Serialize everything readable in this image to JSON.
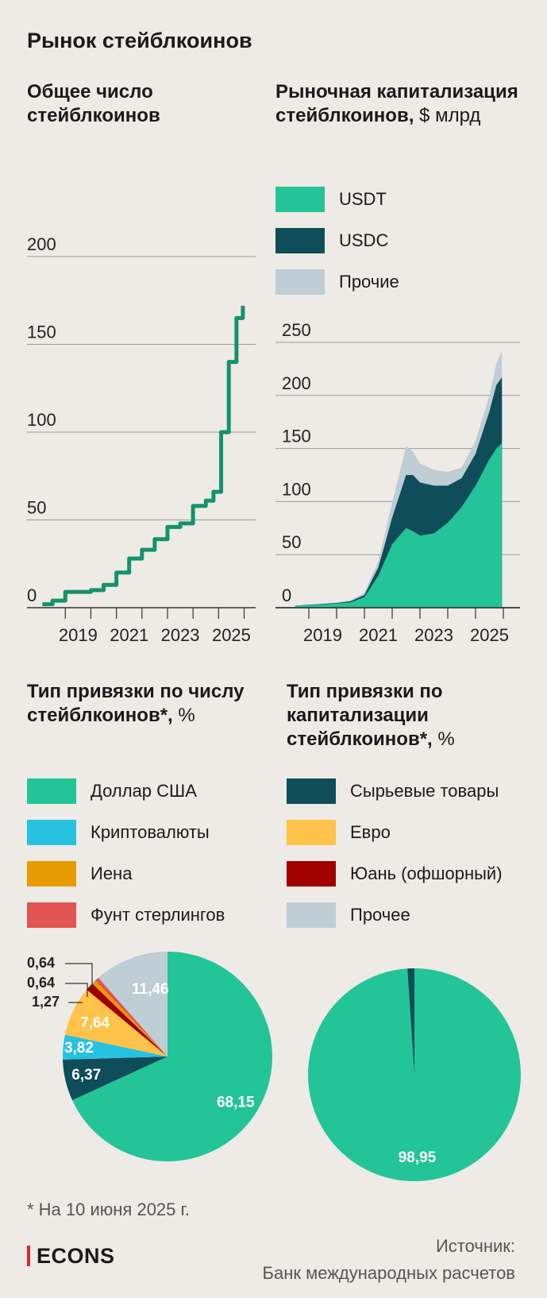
{
  "title": "Рынок стейблкоинов",
  "colors": {
    "usdt": "#23c497",
    "usdc": "#0e4d59",
    "other_cap": "#bfcdd5",
    "usd": "#23c497",
    "crypto": "#27c2e0",
    "yen": "#e89b00",
    "gbp": "#e35454",
    "commod": "#0e4d59",
    "eur": "#ffc24a",
    "cny": "#a00000",
    "other": "#bfcdd5",
    "line": "#14926c",
    "grid": "#9a9a9a"
  },
  "count_chart": {
    "title": "Общее число стейблкоинов",
    "yticks": [
      "200",
      "150",
      "100",
      "50",
      "0"
    ],
    "xticks": [
      "2019",
      "2021",
      "2023",
      "2025"
    ]
  },
  "cap_chart": {
    "title_bold": "Рыночная капитализация стейблкоинов,",
    "title_unit": "$ млрд",
    "legend": [
      "USDT",
      "USDC",
      "Прочие"
    ],
    "yticks": [
      "250",
      "200",
      "150",
      "100",
      "50",
      "0"
    ],
    "xticks": [
      "2019",
      "2021",
      "2023",
      "2025"
    ]
  },
  "peg_count": {
    "title_bold": "Тип привязки по числу стейблкоинов*,",
    "title_unit": "%",
    "legend": [
      "Доллар США",
      "Криптовалюты",
      "Иена",
      "Фунт стерлингов"
    ]
  },
  "peg_cap": {
    "title_bold": "Тип привязки по капитализации стейблкоинов*,",
    "title_unit": "%",
    "legend": [
      "Сырьевые товары",
      "Евро",
      "Юань (офшорный)",
      "Прочее"
    ]
  },
  "footnote": "* На 10 июня 2025 г.",
  "logo": "ECONS",
  "source_line1": "Источник:",
  "source_line2": "Банк международных расчетов",
  "chart_data": [
    {
      "type": "line",
      "title": "Общее число стейблкоинов",
      "ylim": [
        0,
        200
      ],
      "x": [
        2017.6,
        2018.0,
        2018.5,
        2019.0,
        2019.5,
        2020.0,
        2020.5,
        2021.0,
        2021.5,
        2022.0,
        2022.5,
        2023.0,
        2023.5,
        2024.0,
        2024.3,
        2024.6,
        2024.9,
        2025.2,
        2025.45
      ],
      "y": [
        2,
        4,
        9,
        9,
        10,
        13,
        20,
        28,
        33,
        39,
        46,
        48,
        58,
        61,
        66,
        100,
        140,
        165,
        172
      ],
      "grid": true
    },
    {
      "type": "area",
      "title": "Рыночная капитализация стейблкоинов, $ млрд",
      "ylim": [
        0,
        250
      ],
      "x": [
        2018.0,
        2019.0,
        2019.5,
        2020.0,
        2020.5,
        2021.0,
        2021.25,
        2021.5,
        2022.0,
        2022.25,
        2022.5,
        2023.0,
        2023.5,
        2024.0,
        2024.5,
        2025.0,
        2025.25,
        2025.45
      ],
      "series": [
        {
          "name": "USDT",
          "values": [
            2,
            3,
            4,
            5,
            10,
            30,
            45,
            60,
            75,
            72,
            68,
            70,
            80,
            95,
            115,
            140,
            150,
            155
          ]
        },
        {
          "name": "USDC",
          "values": [
            0,
            0.5,
            0.5,
            1,
            2,
            8,
            16,
            25,
            50,
            53,
            50,
            45,
            35,
            27,
            30,
            45,
            60,
            62
          ]
        },
        {
          "name": "Прочие",
          "values": [
            0,
            0.5,
            0.5,
            1,
            2,
            6,
            10,
            14,
            27,
            22,
            18,
            15,
            13,
            10,
            12,
            15,
            20,
            25
          ]
        }
      ],
      "grid": true
    },
    {
      "type": "pie",
      "title": "Тип привязки по числу стейблкоинов*, %",
      "labels": [
        "Доллар США",
        "Сырьевые товары",
        "Криптовалюты",
        "Евро",
        "Юань (офшорный)",
        "Иена",
        "Фунт стерлингов",
        "Прочее"
      ],
      "values": [
        68.15,
        6.37,
        3.82,
        7.64,
        1.27,
        0.64,
        0.64,
        11.46
      ],
      "value_labels": [
        "68,15",
        "6,37",
        "3,82",
        "7,64",
        "1,27",
        "0,64",
        "0,64",
        "11,46"
      ]
    },
    {
      "type": "pie",
      "title": "Тип привязки по капитализации стейблкоинов*, %",
      "labels": [
        "Доллар США",
        "Сырьевые товары"
      ],
      "values": [
        98.95,
        1.05
      ],
      "value_labels": [
        "98,95",
        ""
      ]
    }
  ]
}
